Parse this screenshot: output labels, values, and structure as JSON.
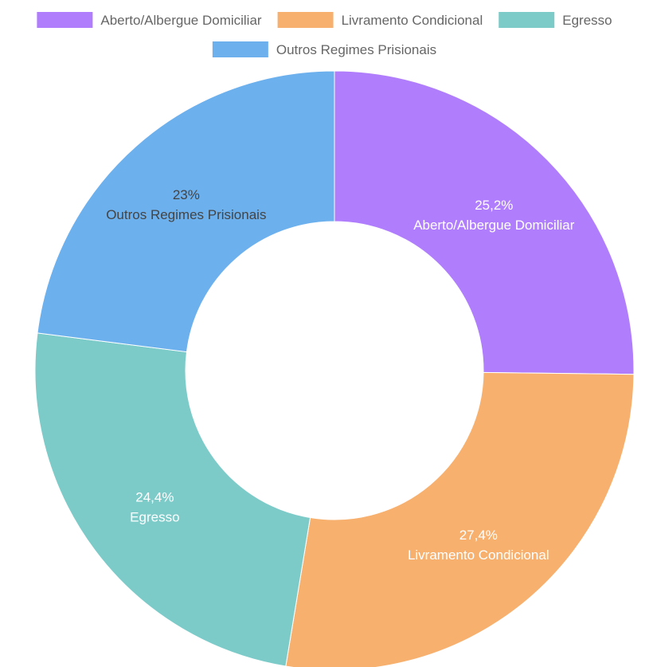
{
  "chart_data": {
    "type": "pie",
    "variant": "doughnut",
    "legend_position": "top",
    "categories": [
      "Aberto/Albergue Domiciliar",
      "Livramento Condicional",
      "Egresso",
      "Outros Regimes Prisionais"
    ],
    "values": [
      25.2,
      27.4,
      24.4,
      23
    ],
    "labels": [
      "25,2%",
      "27,4%",
      "24,4%",
      "23%"
    ],
    "colors": [
      "#b07efd",
      "#f7b06e",
      "#7dcbc9",
      "#6cb0ee"
    ],
    "label_colors": [
      "#ffffff",
      "#ffffff",
      "#ffffff",
      "#444444"
    ]
  }
}
